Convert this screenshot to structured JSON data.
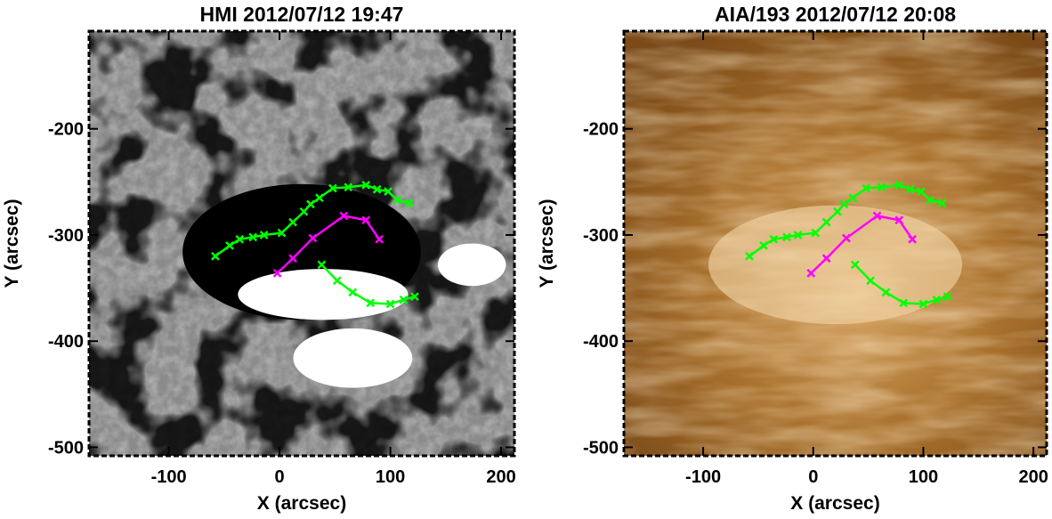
{
  "chart_data": [
    {
      "type": "line",
      "title": "HMI 2012/07/12 19:47",
      "x_label": "X (arcsec)",
      "y_label": "Y (arcsec)",
      "xlim": [
        -172,
        212
      ],
      "ylim": [
        -508,
        -108
      ],
      "xticks": [
        -100,
        0,
        100,
        200
      ],
      "yticks": [
        -500,
        -400,
        -300,
        -200
      ],
      "background": "magnetogram",
      "series": [
        {
          "color": "#00ff00",
          "x": [
            -58,
            -45,
            -36,
            -24,
            -14,
            2,
            12,
            22,
            28,
            36,
            48,
            62,
            78,
            88,
            98,
            106,
            117
          ],
          "values": [
            -320,
            -310,
            -304,
            -302,
            -300,
            -298,
            -288,
            -278,
            -271,
            -265,
            -256,
            -255,
            -253,
            -257,
            -259,
            -267,
            -270
          ]
        },
        {
          "color": "#00ff00",
          "x": [
            38,
            52,
            66,
            82,
            100,
            112,
            122
          ],
          "values": [
            -328,
            -343,
            -354,
            -364,
            -365,
            -361,
            -358
          ]
        },
        {
          "color": "#ff00ff",
          "x": [
            -2,
            12,
            30,
            58,
            78,
            90
          ],
          "values": [
            -336,
            -322,
            -303,
            -282,
            -286,
            -304
          ]
        }
      ]
    },
    {
      "type": "line",
      "title": "AIA/193 2012/07/12 20:08",
      "x_label": "X (arcsec)",
      "y_label": "Y (arcsec)",
      "xlim": [
        -172,
        212
      ],
      "ylim": [
        -508,
        -108
      ],
      "xticks": [
        -100,
        0,
        100,
        200
      ],
      "yticks": [
        -500,
        -400,
        -300,
        -200
      ],
      "background": "euv",
      "series": [
        {
          "color": "#00ff00",
          "x": [
            -58,
            -45,
            -36,
            -24,
            -14,
            2,
            12,
            22,
            28,
            36,
            48,
            62,
            78,
            88,
            98,
            106,
            117
          ],
          "values": [
            -320,
            -310,
            -304,
            -302,
            -300,
            -298,
            -288,
            -278,
            -271,
            -265,
            -256,
            -255,
            -253,
            -257,
            -259,
            -267,
            -270
          ]
        },
        {
          "color": "#00ff00",
          "x": [
            38,
            52,
            66,
            82,
            100,
            112,
            122
          ],
          "values": [
            -328,
            -343,
            -354,
            -364,
            -365,
            -361,
            -358
          ]
        },
        {
          "color": "#ff00ff",
          "x": [
            -2,
            12,
            30,
            58,
            78,
            90
          ],
          "values": [
            -336,
            -322,
            -303,
            -282,
            -286,
            -304
          ]
        }
      ]
    }
  ]
}
